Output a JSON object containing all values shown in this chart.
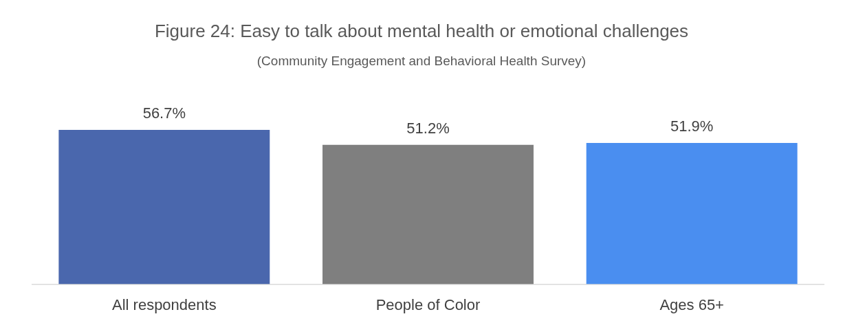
{
  "chart_data": {
    "type": "bar",
    "title": "Figure 24: Easy to talk about mental health or emotional challenges",
    "subtitle": "(Community Engagement and Behavioral Health Survey)",
    "categories": [
      "All respondents",
      "People of Color",
      "Ages 65+"
    ],
    "values": [
      56.7,
      51.2,
      51.9
    ],
    "colors": [
      "#4a67ad",
      "#7f7f7f",
      "#4a8ef0"
    ],
    "value_labels": [
      "56.7%",
      "51.2%",
      "51.9%"
    ],
    "grid": false,
    "legend": false
  }
}
